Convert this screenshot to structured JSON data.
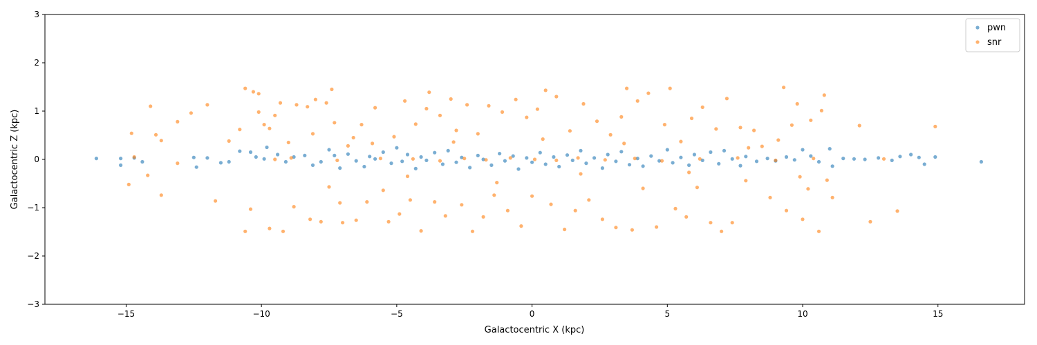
{
  "chart_data": {
    "type": "scatter",
    "title": "",
    "xlabel": "Galactocentric X (kpc)",
    "ylabel": "Galactocentric Z (kpc)",
    "xlim": [
      -18,
      18.2
    ],
    "ylim": [
      -3,
      3
    ],
    "xticks": [
      -15,
      -10,
      -5,
      0,
      5,
      10,
      15
    ],
    "yticks": [
      -3,
      -2,
      -1,
      0,
      1,
      2,
      3
    ],
    "xtick_labels": [
      "−15",
      "−10",
      "−5",
      "0",
      "5",
      "10",
      "15"
    ],
    "ytick_labels": [
      "−3",
      "−2",
      "−1",
      "0",
      "1",
      "2",
      "3"
    ],
    "grid": false,
    "legend_position": "top-right",
    "series": [
      {
        "name": "pwn",
        "color": "#1f77b4",
        "points": [
          [
            -16.1,
            0.02
          ],
          [
            -15.2,
            -0.12
          ],
          [
            -15.2,
            0.02
          ],
          [
            -14.7,
            0.03
          ],
          [
            -14.4,
            -0.05
          ],
          [
            -12.5,
            0.04
          ],
          [
            -12.4,
            -0.16
          ],
          [
            -12.0,
            0.03
          ],
          [
            -11.5,
            -0.07
          ],
          [
            -11.2,
            -0.05
          ],
          [
            -10.8,
            0.17
          ],
          [
            -10.4,
            0.15
          ],
          [
            -10.2,
            0.05
          ],
          [
            -9.9,
            0.01
          ],
          [
            -9.8,
            0.25
          ],
          [
            -9.4,
            0.1
          ],
          [
            -9.1,
            -0.05
          ],
          [
            -8.8,
            0.05
          ],
          [
            -8.4,
            0.08
          ],
          [
            -8.1,
            -0.12
          ],
          [
            -7.8,
            -0.05
          ],
          [
            -7.5,
            0.2
          ],
          [
            -7.3,
            0.08
          ],
          [
            -7.1,
            -0.18
          ],
          [
            -6.8,
            0.11
          ],
          [
            -6.5,
            -0.03
          ],
          [
            -6.2,
            -0.15
          ],
          [
            -6.0,
            0.06
          ],
          [
            -5.8,
            0.01
          ],
          [
            -5.5,
            0.15
          ],
          [
            -5.2,
            -0.08
          ],
          [
            -5.0,
            0.24
          ],
          [
            -4.8,
            -0.04
          ],
          [
            -4.6,
            0.1
          ],
          [
            -4.3,
            -0.19
          ],
          [
            -4.1,
            0.05
          ],
          [
            -3.9,
            -0.02
          ],
          [
            -3.6,
            0.14
          ],
          [
            -3.3,
            -0.1
          ],
          [
            -3.1,
            0.18
          ],
          [
            -2.8,
            -0.06
          ],
          [
            -2.6,
            0.04
          ],
          [
            -2.3,
            -0.17
          ],
          [
            -2.0,
            0.08
          ],
          [
            -1.8,
            0.0
          ],
          [
            -1.5,
            -0.12
          ],
          [
            -1.2,
            0.12
          ],
          [
            -1.0,
            -0.03
          ],
          [
            -0.7,
            0.07
          ],
          [
            -0.5,
            -0.2
          ],
          [
            -0.2,
            0.03
          ],
          [
            0.0,
            -0.06
          ],
          [
            0.3,
            0.14
          ],
          [
            0.5,
            -0.1
          ],
          [
            0.8,
            0.05
          ],
          [
            1.0,
            -0.15
          ],
          [
            1.3,
            0.09
          ],
          [
            1.5,
            -0.02
          ],
          [
            1.8,
            0.18
          ],
          [
            2.0,
            -0.08
          ],
          [
            2.3,
            0.03
          ],
          [
            2.6,
            -0.18
          ],
          [
            2.8,
            0.1
          ],
          [
            3.1,
            -0.04
          ],
          [
            3.3,
            0.16
          ],
          [
            3.6,
            -0.11
          ],
          [
            3.9,
            0.02
          ],
          [
            4.1,
            -0.14
          ],
          [
            4.4,
            0.07
          ],
          [
            4.7,
            -0.03
          ],
          [
            5.0,
            0.2
          ],
          [
            5.2,
            -0.07
          ],
          [
            5.5,
            0.04
          ],
          [
            5.8,
            -0.12
          ],
          [
            6.0,
            0.1
          ],
          [
            6.3,
            -0.02
          ],
          [
            6.6,
            0.15
          ],
          [
            6.9,
            -0.09
          ],
          [
            7.1,
            0.18
          ],
          [
            7.4,
            0.01
          ],
          [
            7.7,
            -0.13
          ],
          [
            7.9,
            0.06
          ],
          [
            8.3,
            -0.04
          ],
          [
            8.7,
            0.02
          ],
          [
            9.0,
            -0.03
          ],
          [
            9.4,
            0.05
          ],
          [
            9.7,
            -0.01
          ],
          [
            10.0,
            0.2
          ],
          [
            10.3,
            0.07
          ],
          [
            10.6,
            -0.05
          ],
          [
            11.0,
            0.22
          ],
          [
            11.1,
            -0.14
          ],
          [
            11.5,
            0.02
          ],
          [
            11.9,
            0.01
          ],
          [
            12.3,
            0.0
          ],
          [
            12.8,
            0.03
          ],
          [
            13.3,
            -0.02
          ],
          [
            13.6,
            0.06
          ],
          [
            14.0,
            0.1
          ],
          [
            14.3,
            0.04
          ],
          [
            14.5,
            -0.1
          ],
          [
            14.9,
            0.05
          ],
          [
            16.6,
            -0.05
          ]
        ]
      },
      {
        "name": "snr",
        "color": "#ff7f0e",
        "points": [
          [
            -14.9,
            -0.52
          ],
          [
            -14.8,
            0.54
          ],
          [
            -14.7,
            0.05
          ],
          [
            -14.2,
            -0.33
          ],
          [
            -14.1,
            1.1
          ],
          [
            -13.9,
            0.51
          ],
          [
            -13.7,
            0.39
          ],
          [
            -13.7,
            -0.74
          ],
          [
            -13.1,
            0.78
          ],
          [
            -13.1,
            -0.08
          ],
          [
            -12.6,
            0.96
          ],
          [
            -12.0,
            1.13
          ],
          [
            -11.7,
            -0.86
          ],
          [
            -11.2,
            0.38
          ],
          [
            -10.8,
            0.62
          ],
          [
            -10.6,
            1.47
          ],
          [
            -10.6,
            -1.49
          ],
          [
            -10.4,
            -1.03
          ],
          [
            -10.3,
            1.4
          ],
          [
            -10.1,
            1.36
          ],
          [
            -10.1,
            0.98
          ],
          [
            -9.9,
            0.72
          ],
          [
            -9.7,
            0.64
          ],
          [
            -9.7,
            -1.43
          ],
          [
            -9.5,
            0.91
          ],
          [
            -9.3,
            1.17
          ],
          [
            -9.2,
            -1.49
          ],
          [
            -9.0,
            0.35
          ],
          [
            -8.8,
            -0.98
          ],
          [
            -8.7,
            1.13
          ],
          [
            -8.3,
            1.09
          ],
          [
            -8.2,
            -1.24
          ],
          [
            -8.1,
            0.53
          ],
          [
            -8.0,
            1.24
          ],
          [
            -7.8,
            -1.29
          ],
          [
            -7.6,
            1.17
          ],
          [
            -7.5,
            -0.57
          ],
          [
            -7.4,
            1.45
          ],
          [
            -7.3,
            0.76
          ],
          [
            -7.1,
            -0.9
          ],
          [
            -7.0,
            -1.31
          ],
          [
            -6.8,
            0.28
          ],
          [
            -6.5,
            -1.26
          ],
          [
            -6.3,
            0.72
          ],
          [
            -6.1,
            -0.88
          ],
          [
            -5.9,
            0.33
          ],
          [
            -5.8,
            1.07
          ],
          [
            -5.5,
            -0.64
          ],
          [
            -5.3,
            -1.29
          ],
          [
            -5.1,
            0.47
          ],
          [
            -4.9,
            -1.13
          ],
          [
            -4.7,
            1.21
          ],
          [
            -4.5,
            -0.84
          ],
          [
            -4.3,
            0.73
          ],
          [
            -4.1,
            -1.48
          ],
          [
            -3.9,
            1.05
          ],
          [
            -3.8,
            1.39
          ],
          [
            -3.6,
            -0.88
          ],
          [
            -3.4,
            0.91
          ],
          [
            -3.2,
            -1.17
          ],
          [
            -3.0,
            1.25
          ],
          [
            -2.8,
            0.6
          ],
          [
            -2.6,
            -0.94
          ],
          [
            -2.4,
            1.13
          ],
          [
            -2.2,
            -1.49
          ],
          [
            -2.0,
            0.53
          ],
          [
            -1.8,
            -1.19
          ],
          [
            -1.6,
            1.11
          ],
          [
            -1.4,
            -0.74
          ],
          [
            -1.1,
            0.98
          ],
          [
            -0.9,
            -1.06
          ],
          [
            -0.6,
            1.24
          ],
          [
            -0.4,
            -1.38
          ],
          [
            -0.2,
            0.87
          ],
          [
            0.0,
            -0.76
          ],
          [
            0.2,
            1.04
          ],
          [
            0.5,
            1.43
          ],
          [
            0.7,
            -0.93
          ],
          [
            0.9,
            1.3
          ],
          [
            1.2,
            -1.45
          ],
          [
            1.4,
            0.59
          ],
          [
            1.6,
            -1.06
          ],
          [
            1.9,
            1.15
          ],
          [
            2.1,
            -0.84
          ],
          [
            2.4,
            0.79
          ],
          [
            2.6,
            -1.24
          ],
          [
            2.9,
            0.51
          ],
          [
            3.1,
            -1.41
          ],
          [
            3.3,
            0.88
          ],
          [
            3.5,
            1.47
          ],
          [
            3.7,
            -1.46
          ],
          [
            3.9,
            1.21
          ],
          [
            4.1,
            -0.6
          ],
          [
            4.3,
            1.37
          ],
          [
            4.6,
            -1.4
          ],
          [
            4.9,
            0.72
          ],
          [
            5.1,
            1.47
          ],
          [
            5.3,
            -1.02
          ],
          [
            5.5,
            0.37
          ],
          [
            5.7,
            -1.19
          ],
          [
            5.9,
            0.85
          ],
          [
            6.1,
            -0.58
          ],
          [
            6.3,
            1.08
          ],
          [
            6.6,
            -1.31
          ],
          [
            6.8,
            0.63
          ],
          [
            7.0,
            -1.49
          ],
          [
            7.2,
            1.26
          ],
          [
            7.4,
            -1.31
          ],
          [
            7.7,
            0.66
          ],
          [
            7.9,
            -0.44
          ],
          [
            8.2,
            0.6
          ],
          [
            8.5,
            0.27
          ],
          [
            8.8,
            -0.79
          ],
          [
            9.1,
            0.4
          ],
          [
            9.3,
            1.49
          ],
          [
            9.4,
            -1.06
          ],
          [
            9.6,
            0.71
          ],
          [
            9.8,
            1.15
          ],
          [
            10.0,
            -1.24
          ],
          [
            10.2,
            -0.61
          ],
          [
            10.3,
            0.81
          ],
          [
            10.6,
            -1.49
          ],
          [
            10.7,
            1.01
          ],
          [
            10.8,
            1.33
          ],
          [
            10.9,
            -0.43
          ],
          [
            11.1,
            -0.79
          ],
          [
            12.1,
            0.7
          ],
          [
            12.5,
            -1.29
          ],
          [
            13.5,
            -1.07
          ],
          [
            14.9,
            0.68
          ],
          [
            -9.5,
            0.0
          ],
          [
            -8.9,
            0.03
          ],
          [
            -7.2,
            -0.02
          ],
          [
            -5.6,
            0.02
          ],
          [
            -4.4,
            0.01
          ],
          [
            -3.4,
            -0.03
          ],
          [
            -2.5,
            0.02
          ],
          [
            -1.7,
            -0.01
          ],
          [
            -0.8,
            0.03
          ],
          [
            0.1,
            0.0
          ],
          [
            0.9,
            -0.02
          ],
          [
            1.7,
            0.03
          ],
          [
            2.7,
            -0.01
          ],
          [
            3.8,
            0.02
          ],
          [
            4.8,
            -0.03
          ],
          [
            6.2,
            0.01
          ],
          [
            7.6,
            0.03
          ],
          [
            9.0,
            -0.02
          ],
          [
            10.4,
            0.02
          ],
          [
            13.0,
            0.01
          ],
          [
            -6.6,
            0.45
          ],
          [
            -4.6,
            -0.35
          ],
          [
            -2.9,
            0.36
          ],
          [
            -1.3,
            -0.48
          ],
          [
            0.4,
            0.42
          ],
          [
            1.8,
            -0.3
          ],
          [
            3.4,
            0.33
          ],
          [
            5.8,
            -0.27
          ],
          [
            8.0,
            0.24
          ],
          [
            9.9,
            -0.36
          ]
        ]
      }
    ]
  }
}
